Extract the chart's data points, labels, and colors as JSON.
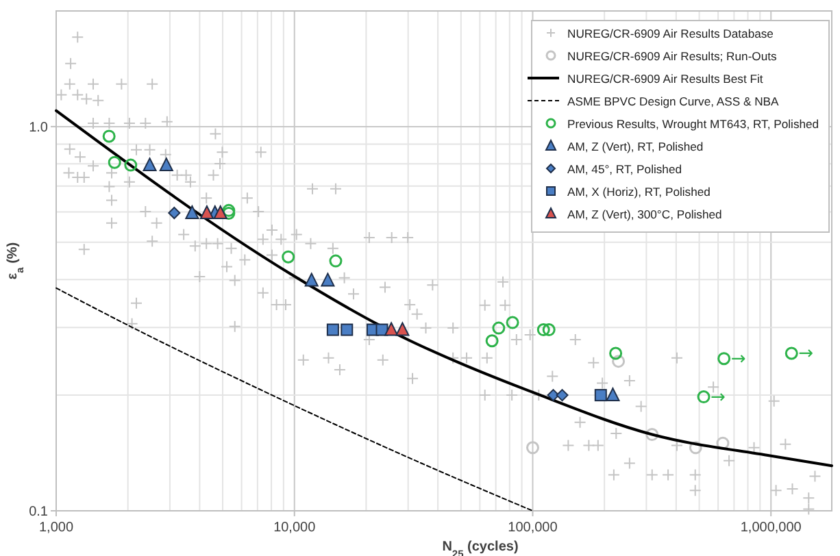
{
  "chart_data": {
    "type": "scatter",
    "xlabel": "N$_{25}$ (cycles)",
    "ylabel": "ε$_{a}$ (%)",
    "log": "xy",
    "xlim": [
      1000,
      1800000
    ],
    "ylim": [
      0.1,
      2
    ],
    "xticks": [
      {
        "value": 1000,
        "label": "1,000"
      },
      {
        "value": 10000,
        "label": "10,000"
      },
      {
        "value": 100000,
        "label": "100,000"
      },
      {
        "value": 1000000,
        "label": "1,000,000"
      }
    ],
    "yticks": [
      {
        "value": 0.1,
        "label": "0.1"
      },
      {
        "value": 1,
        "label": "1.0"
      }
    ],
    "grid": true,
    "legend": "top right",
    "series": [
      {
        "name": "NUREG/CR-6909 Air Results Database",
        "type": "scatter",
        "marker": "cross",
        "color": "#c4c4c4",
        "x": [
          1230,
          1150,
          1140,
          1430,
          1880,
          2530,
          1230,
          1340,
          1500,
          1050,
          1430,
          1670,
          2030,
          2370,
          2920,
          1140,
          1260,
          1430,
          1130,
          1230,
          1710,
          1310,
          1670,
          2030,
          2170,
          2470,
          2880,
          3220,
          3510,
          3660,
          4270,
          4660,
          4980,
          4870,
          4570,
          7230,
          6340,
          7060,
          8050,
          8790,
          10200,
          11900,
          14900,
          20600,
          25600,
          29900,
          1710,
          1710,
          1310,
          2370,
          2640,
          2530,
          3430,
          3830,
          4270,
          4760,
          5430,
          6190,
          7380,
          8050,
          11700,
          14500,
          4000,
          5200,
          5620,
          7380,
          8410,
          9190,
          2170,
          2080,
          5620,
          10900,
          13900,
          15500,
          20600,
          23500,
          31300,
          17700,
          24000,
          30500,
          16200,
          10000,
          38000,
          32700,
          35600,
          46300,
          63000,
          76600,
          75000,
          64300,
          52800,
          46300,
          85500,
          97500,
          63000,
          81800,
          106000,
          151000,
          121000,
          158000,
          141000,
          172000,
          188000,
          224000,
          219000,
          255000,
          285000,
          317000,
          370000,
          403000,
          403000,
          481000,
          481000,
          573000,
          667000,
          849000,
          1030000,
          1150000,
          1050000,
          1230000,
          1440000,
          1530000,
          1440000,
          180000,
          255000,
          196000
        ],
        "values": [
          1.71,
          1.46,
          1.29,
          1.29,
          1.29,
          1.29,
          1.21,
          1.18,
          1.17,
          1.21,
          1.02,
          1.02,
          1.02,
          1.02,
          1.03,
          0.874,
          0.834,
          0.79,
          0.758,
          0.738,
          0.758,
          0.738,
          0.698,
          0.718,
          0.87,
          0.87,
          0.846,
          0.748,
          0.748,
          0.718,
          0.652,
          0.957,
          0.858,
          0.801,
          0.748,
          0.858,
          0.652,
          0.601,
          0.538,
          0.509,
          0.524,
          0.689,
          0.689,
          0.514,
          0.514,
          0.514,
          0.643,
          0.561,
          0.479,
          0.601,
          0.561,
          0.503,
          0.524,
          0.489,
          0.496,
          0.496,
          0.482,
          0.45,
          0.509,
          0.463,
          0.496,
          0.482,
          0.407,
          0.432,
          0.398,
          0.369,
          0.344,
          0.344,
          0.347,
          0.307,
          0.302,
          0.247,
          0.25,
          0.233,
          0.279,
          0.247,
          0.221,
          0.367,
          0.382,
          0.344,
          0.404,
          0.404,
          0.387,
          0.325,
          0.299,
          0.299,
          0.343,
          0.343,
          0.394,
          0.25,
          0.25,
          0.25,
          0.279,
          0.287,
          0.2,
          0.2,
          0.2,
          0.279,
          0.224,
          0.17,
          0.148,
          0.148,
          0.148,
          0.159,
          0.124,
          0.133,
          0.187,
          0.124,
          0.124,
          0.25,
          0.148,
          0.124,
          0.113,
          0.21,
          0.135,
          0.146,
          0.193,
          0.149,
          0.113,
          0.114,
          0.108,
          0.123,
          0.101,
          0.243,
          0.218,
          0.215
        ]
      },
      {
        "name": "NUREG/CR-6909 Air Results; Run-Outs",
        "type": "scatter",
        "marker": "circle",
        "color": "#c4c4c4",
        "x": [
          229000,
          317000,
          100000,
          483000,
          628000
        ],
        "values": [
          0.245,
          0.158,
          0.146,
          0.146,
          0.15
        ]
      },
      {
        "name": "NUREG/CR-6909 Air Results Best Fit",
        "type": "line",
        "line_style": "solid",
        "marker": "none",
        "color": "#000000",
        "x": [
          1000,
          9550,
          23000,
          29900,
          46100,
          101000,
          317000,
          1000000,
          1800000
        ],
        "values": [
          1.1,
          0.415,
          0.303,
          0.279,
          0.247,
          0.203,
          0.158,
          0.139,
          0.131
        ]
      },
      {
        "name": "ASME BPVC Design Curve, ASS & NBA",
        "type": "line",
        "line_style": "dashed",
        "marker": "none",
        "color": "#000000",
        "x": [
          1000,
          2090,
          8060,
          34100,
          100000
        ],
        "values": [
          0.38,
          0.3,
          0.2,
          0.133,
          0.1
        ]
      },
      {
        "name": "Previous Results, Wrought MT643, RT, Polished",
        "type": "scatter",
        "marker": "circle",
        "color": "#2db34a",
        "x": [
          1667,
          1758,
          2055,
          5300,
          5300,
          9420,
          14900,
          67500,
          72000,
          82300,
          111000,
          117000,
          223000,
          635000,
          522000,
          1220000
        ],
        "values": [
          0.944,
          0.807,
          0.794,
          0.605,
          0.595,
          0.458,
          0.447,
          0.277,
          0.299,
          0.309,
          0.296,
          0.296,
          0.257,
          0.249,
          0.198,
          0.257
        ]
      },
      {
        "name": "AM, Z (Vert), RT, Polished",
        "type": "scatter",
        "marker": "triangle",
        "color": "#4a7ec4",
        "x": [
          2470,
          2900,
          3720,
          4640,
          11800,
          13800,
          217000
        ],
        "values": [
          0.794,
          0.794,
          0.596,
          0.596,
          0.398,
          0.398,
          0.2
        ]
      },
      {
        "name": "AM, 45°, RT, Polished",
        "type": "scatter",
        "marker": "diamond",
        "color": "#4a7ec4",
        "x": [
          3130,
          122000,
          133000
        ],
        "values": [
          0.596,
          0.2,
          0.2
        ]
      },
      {
        "name": "AM, X (Horiz), RT, Polished",
        "type": "scatter",
        "marker": "square",
        "color": "#4a7ec4",
        "x": [
          14500,
          16600,
          21300,
          23300,
          193000
        ],
        "values": [
          0.296,
          0.296,
          0.296,
          0.296,
          0.2
        ]
      },
      {
        "name": "AM, Z (Vert), 300°C, Polished",
        "type": "scatter",
        "marker": "triangle",
        "color": "#d9534f",
        "x": [
          4290,
          4890,
          25500,
          28400
        ],
        "values": [
          0.596,
          0.596,
          0.296,
          0.296
        ]
      }
    ],
    "annotations": [
      {
        "text": "→",
        "x": 635000,
        "y": 0.249
      },
      {
        "text": "→",
        "x": 522000,
        "y": 0.198
      },
      {
        "text": "→",
        "x": 1220000,
        "y": 0.257
      }
    ]
  }
}
